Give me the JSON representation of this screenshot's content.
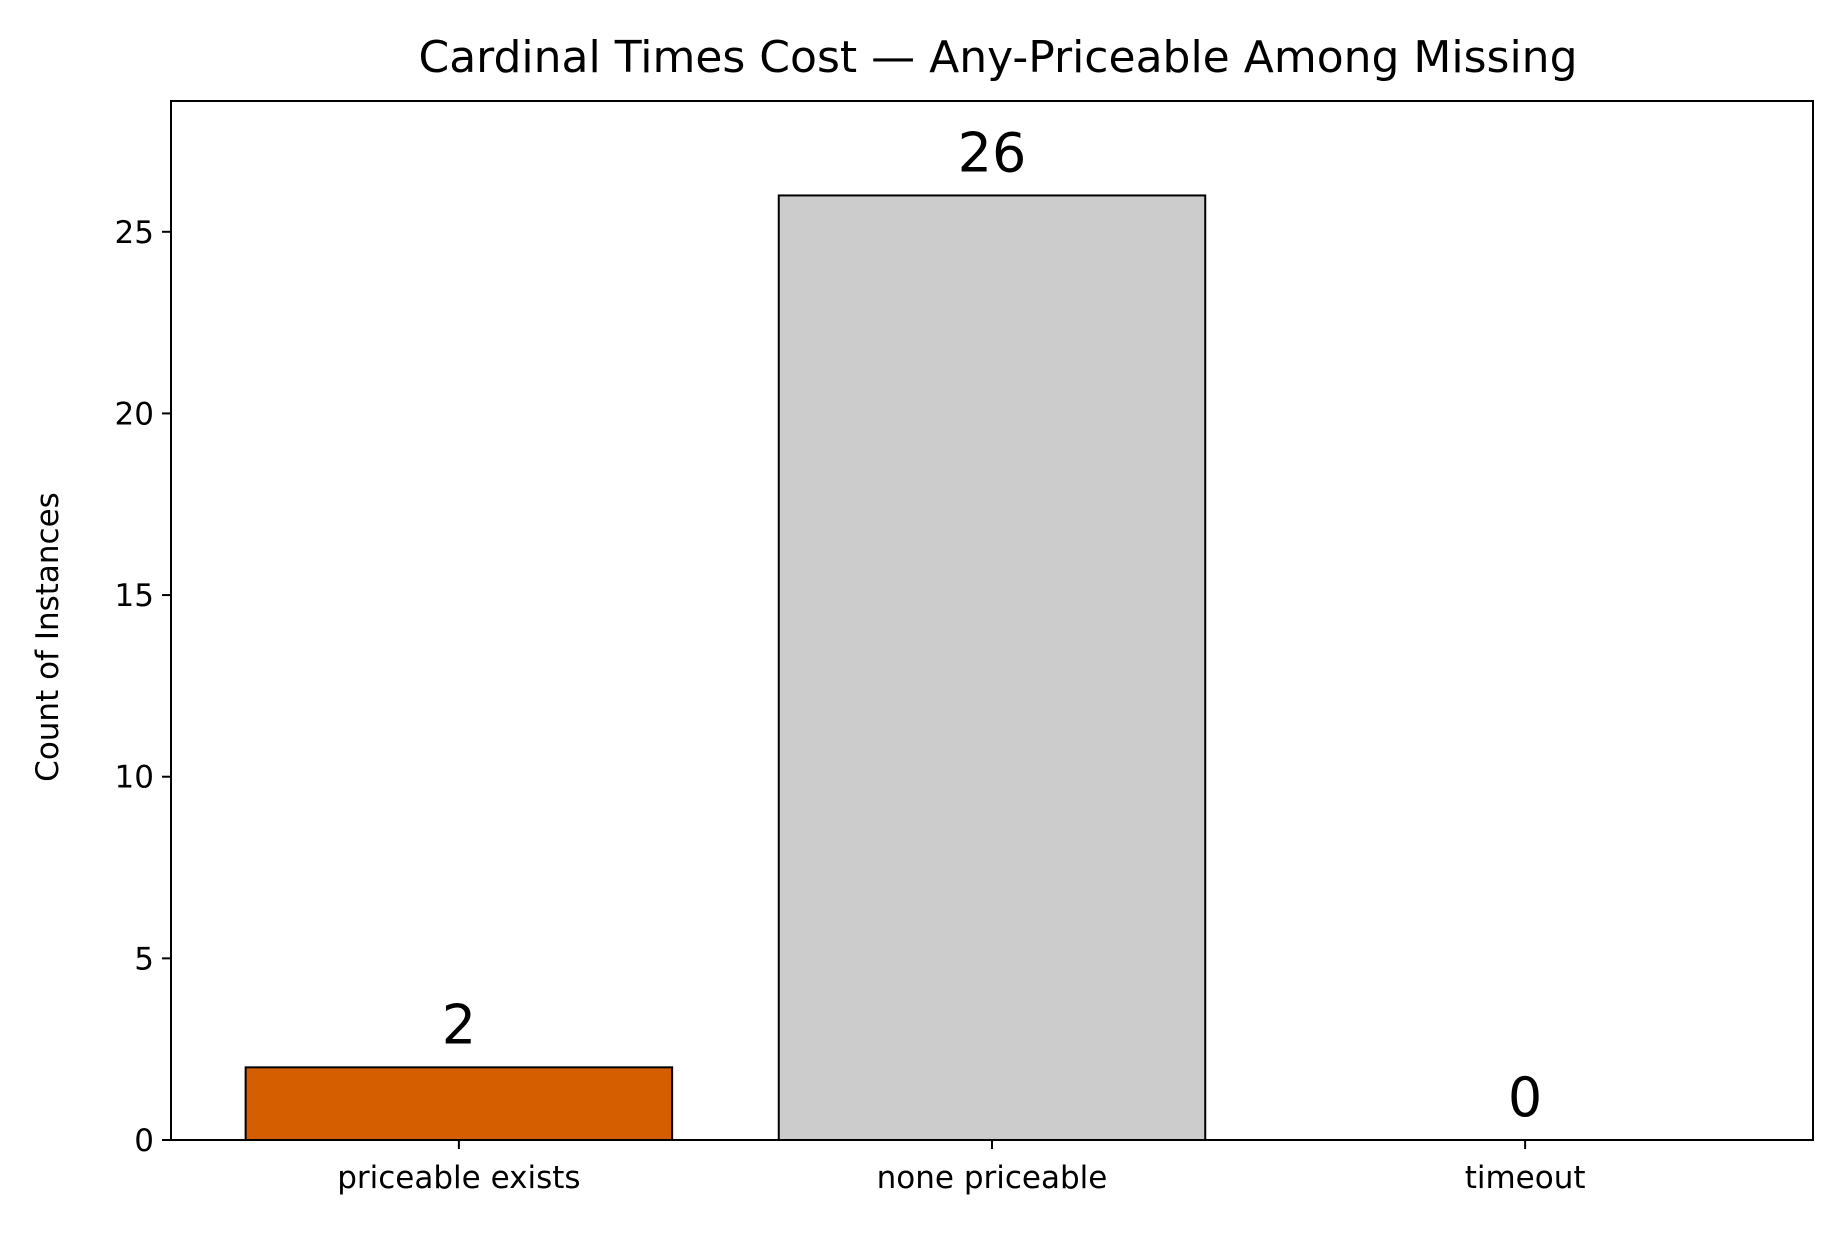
{
  "chart_data": {
    "type": "bar",
    "title": "Cardinal Times Cost — Any-Priceable Among Missing",
    "xlabel": "",
    "ylabel": "Count of Instances",
    "categories": [
      "priceable exists",
      "none priceable",
      "timeout"
    ],
    "values": [
      2,
      26,
      0
    ],
    "data_labels": [
      "2",
      "26",
      "0"
    ],
    "bar_colors": [
      "#d55e00",
      "#cccccc",
      "#cccccc"
    ],
    "edge_color": "#000000",
    "ylim": [
      0,
      28.6
    ],
    "yticks": [
      0,
      5,
      10,
      15,
      20,
      25
    ],
    "grid": false,
    "legend": "none"
  }
}
